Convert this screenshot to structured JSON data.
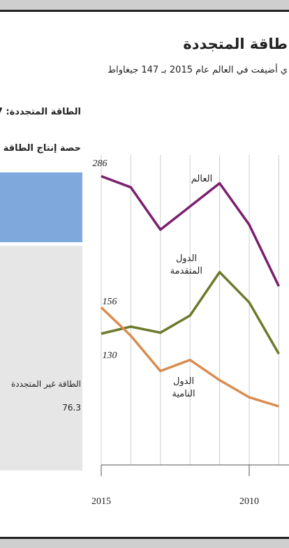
{
  "chart_data": {
    "type": "line",
    "title": "طاقة المتجددة",
    "subtitle": "ي أضيفت في العالم عام 2015 بـ 147 جيغاواط",
    "side_panel": {
      "label_renewable": "الطاقة المتجددة: 7",
      "heading": "حصة إنتاج الطاقة",
      "label_nonrenewable": "الطاقة غير المتجددة",
      "value_nonrenewable": "76.3"
    },
    "x": [
      2015,
      2014,
      2013,
      2012,
      2011,
      2010,
      2009
    ],
    "xlim": [
      2015,
      2009
    ],
    "xticks": [
      2015,
      2010
    ],
    "ylim": [
      0,
      310
    ],
    "grid": true,
    "series": [
      {
        "name": "العالم",
        "color": "#7b1f6e",
        "values": [
          286,
          275,
          233,
          256,
          279,
          238,
          177
        ]
      },
      {
        "name": "الدول المتقدمة",
        "color": "#6b7a2c",
        "values": [
          130,
          137,
          131,
          148,
          191,
          161,
          110
        ]
      },
      {
        "name": "الدول النامية",
        "color": "#d98c4e",
        "values": [
          156,
          128,
          93,
          104,
          84,
          67,
          58
        ]
      }
    ]
  }
}
